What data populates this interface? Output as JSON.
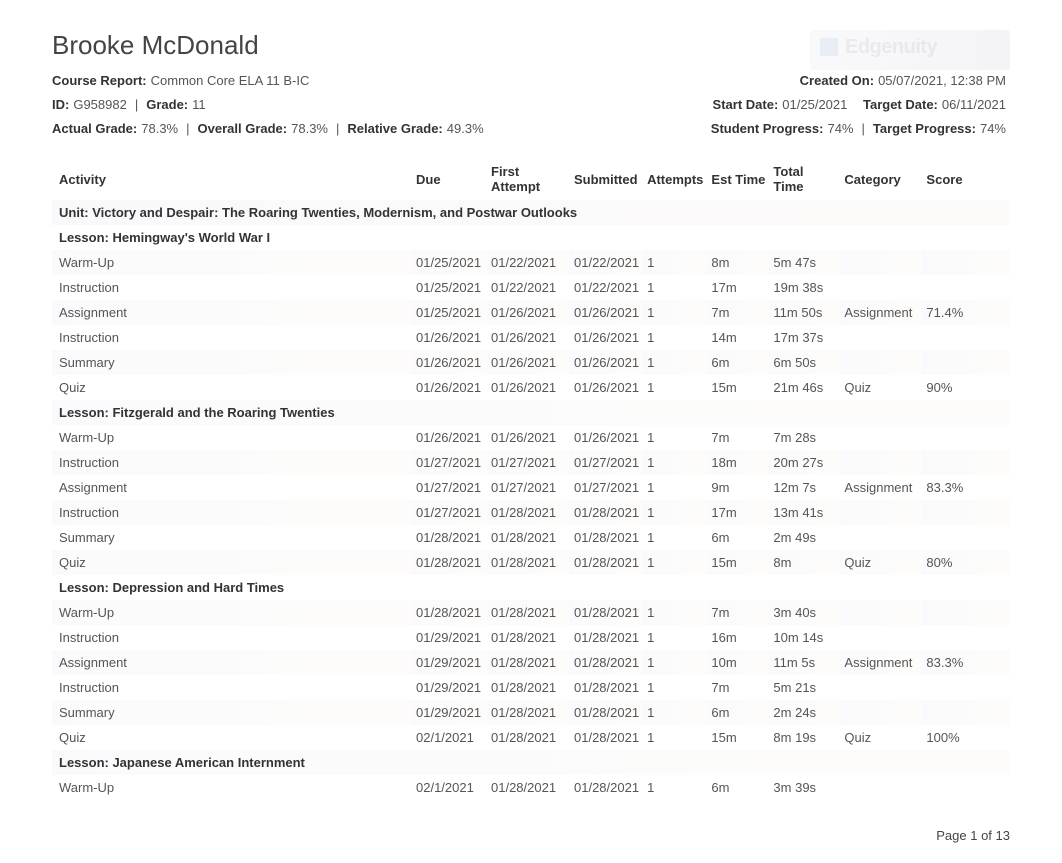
{
  "student_name": "Brooke McDonald",
  "logo_text": "Edgenuity",
  "labels": {
    "course_report": "Course Report:",
    "id": "ID:",
    "grade": "Grade:",
    "actual_grade": "Actual Grade:",
    "overall_grade": "Overall Grade:",
    "relative_grade": "Relative Grade:",
    "created_on": "Created On:",
    "start_date": "Start Date:",
    "target_date": "Target Date:",
    "student_progress": "Student Progress:",
    "target_progress": "Target Progress:"
  },
  "meta": {
    "course_report": "Common Core ELA 11 B-IC",
    "id": "G958982",
    "grade": "11",
    "actual_grade": "78.3%",
    "overall_grade": "78.3%",
    "relative_grade": "49.3%",
    "created_on": "05/07/2021, 12:38 PM",
    "start_date": "01/25/2021",
    "target_date": "06/11/2021",
    "student_progress": "74%",
    "target_progress": "74%",
    "sep_pipe": "|",
    "sep_pipe_sp": " | "
  },
  "columns": {
    "activity": "Activity",
    "due": "Due",
    "first": "First Attempt",
    "submitted": "Submitted",
    "attempts": "Attempts",
    "est": "Est Time",
    "total": "Total Time",
    "category": "Category",
    "score": "Score"
  },
  "rows": [
    {
      "type": "unit",
      "activity": "Unit: Victory and Despair: The Roaring Twenties, Modernism, and Postwar Outlooks"
    },
    {
      "type": "lesson",
      "activity": "Lesson: Hemingway's World War I"
    },
    {
      "type": "data",
      "activity": "Warm-Up",
      "due": "01/25/2021",
      "first": "01/22/2021",
      "submitted": "01/22/2021",
      "attempts": "1",
      "est": "8m",
      "total": "5m 47s",
      "category": "",
      "score": ""
    },
    {
      "type": "data",
      "activity": "Instruction",
      "due": "01/25/2021",
      "first": "01/22/2021",
      "submitted": "01/22/2021",
      "attempts": "1",
      "est": "17m",
      "total": "19m 38s",
      "category": "",
      "score": ""
    },
    {
      "type": "data",
      "activity": "Assignment",
      "due": "01/25/2021",
      "first": "01/26/2021",
      "submitted": "01/26/2021",
      "attempts": "1",
      "est": "7m",
      "total": "11m 50s",
      "category": "Assignment",
      "score": "71.4%"
    },
    {
      "type": "data",
      "activity": "Instruction",
      "due": "01/26/2021",
      "first": "01/26/2021",
      "submitted": "01/26/2021",
      "attempts": "1",
      "est": "14m",
      "total": "17m 37s",
      "category": "",
      "score": ""
    },
    {
      "type": "data",
      "activity": "Summary",
      "due": "01/26/2021",
      "first": "01/26/2021",
      "submitted": "01/26/2021",
      "attempts": "1",
      "est": "6m",
      "total": "6m 50s",
      "category": "",
      "score": ""
    },
    {
      "type": "data",
      "activity": "Quiz",
      "due": "01/26/2021",
      "first": "01/26/2021",
      "submitted": "01/26/2021",
      "attempts": "1",
      "est": "15m",
      "total": "21m 46s",
      "category": "Quiz",
      "score": "90%"
    },
    {
      "type": "lesson",
      "activity": "Lesson: Fitzgerald and the Roaring Twenties"
    },
    {
      "type": "data",
      "activity": "Warm-Up",
      "due": "01/26/2021",
      "first": "01/26/2021",
      "submitted": "01/26/2021",
      "attempts": "1",
      "est": "7m",
      "total": "7m 28s",
      "category": "",
      "score": ""
    },
    {
      "type": "data",
      "activity": "Instruction",
      "due": "01/27/2021",
      "first": "01/27/2021",
      "submitted": "01/27/2021",
      "attempts": "1",
      "est": "18m",
      "total": "20m 27s",
      "category": "",
      "score": ""
    },
    {
      "type": "data",
      "activity": "Assignment",
      "due": "01/27/2021",
      "first": "01/27/2021",
      "submitted": "01/27/2021",
      "attempts": "1",
      "est": "9m",
      "total": "12m 7s",
      "category": "Assignment",
      "score": "83.3%"
    },
    {
      "type": "data",
      "activity": "Instruction",
      "due": "01/27/2021",
      "first": "01/28/2021",
      "submitted": "01/28/2021",
      "attempts": "1",
      "est": "17m",
      "total": "13m 41s",
      "category": "",
      "score": ""
    },
    {
      "type": "data",
      "activity": "Summary",
      "due": "01/28/2021",
      "first": "01/28/2021",
      "submitted": "01/28/2021",
      "attempts": "1",
      "est": "6m",
      "total": "2m 49s",
      "category": "",
      "score": ""
    },
    {
      "type": "data",
      "activity": "Quiz",
      "due": "01/28/2021",
      "first": "01/28/2021",
      "submitted": "01/28/2021",
      "attempts": "1",
      "est": "15m",
      "total": "8m",
      "category": "Quiz",
      "score": "80%"
    },
    {
      "type": "lesson",
      "activity": "Lesson: Depression and Hard Times"
    },
    {
      "type": "data",
      "activity": "Warm-Up",
      "due": "01/28/2021",
      "first": "01/28/2021",
      "submitted": "01/28/2021",
      "attempts": "1",
      "est": "7m",
      "total": "3m 40s",
      "category": "",
      "score": ""
    },
    {
      "type": "data",
      "activity": "Instruction",
      "due": "01/29/2021",
      "first": "01/28/2021",
      "submitted": "01/28/2021",
      "attempts": "1",
      "est": "16m",
      "total": "10m 14s",
      "category": "",
      "score": ""
    },
    {
      "type": "data",
      "activity": "Assignment",
      "due": "01/29/2021",
      "first": "01/28/2021",
      "submitted": "01/28/2021",
      "attempts": "1",
      "est": "10m",
      "total": "11m 5s",
      "category": "Assignment",
      "score": "83.3%"
    },
    {
      "type": "data",
      "activity": "Instruction",
      "due": "01/29/2021",
      "first": "01/28/2021",
      "submitted": "01/28/2021",
      "attempts": "1",
      "est": "7m",
      "total": "5m 21s",
      "category": "",
      "score": ""
    },
    {
      "type": "data",
      "activity": "Summary",
      "due": "01/29/2021",
      "first": "01/28/2021",
      "submitted": "01/28/2021",
      "attempts": "1",
      "est": "6m",
      "total": "2m 24s",
      "category": "",
      "score": ""
    },
    {
      "type": "data",
      "activity": "Quiz",
      "due": "02/1/2021",
      "first": "01/28/2021",
      "submitted": "01/28/2021",
      "attempts": "1",
      "est": "15m",
      "total": "8m 19s",
      "category": "Quiz",
      "score": "100%"
    },
    {
      "type": "lesson",
      "activity": "Lesson: Japanese American Internment"
    },
    {
      "type": "data",
      "activity": "Warm-Up",
      "due": "02/1/2021",
      "first": "01/28/2021",
      "submitted": "01/28/2021",
      "attempts": "1",
      "est": "6m",
      "total": "3m 39s",
      "category": "",
      "score": ""
    }
  ],
  "footer": "Page 1 of 13"
}
